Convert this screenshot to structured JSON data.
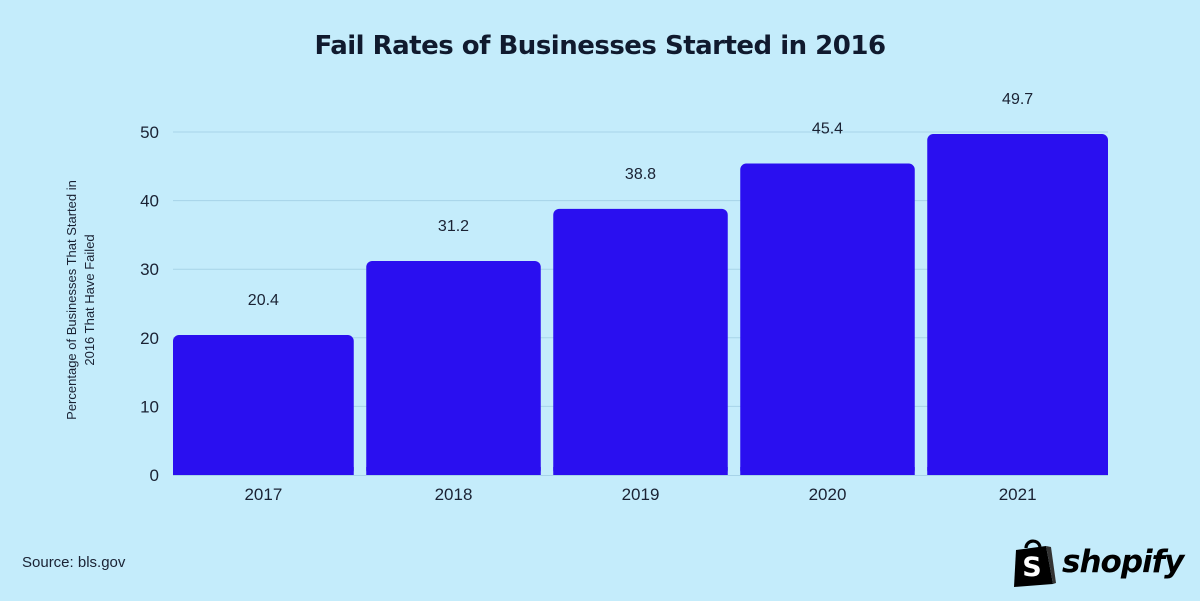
{
  "chart_data": {
    "type": "bar",
    "title": "Fail Rates of Businesses Started in 2016",
    "ylabel_lines": [
      "Percentage of Businesses That Started in",
      "2016 That Have Failed"
    ],
    "xlabel": "",
    "categories": [
      "2017",
      "2018",
      "2019",
      "2020",
      "2021"
    ],
    "values": [
      20.4,
      31.2,
      38.8,
      45.4,
      49.7
    ],
    "value_labels": [
      "20.4",
      "31.2",
      "38.8",
      "45.4",
      "49.7"
    ],
    "y_ticks": [
      0,
      10,
      20,
      30,
      40,
      50
    ],
    "ylim": [
      0,
      50
    ],
    "grid": true,
    "legend": "none",
    "colors": {
      "bar": "#2a0ff0",
      "background": "#c4ecfb",
      "gridline": "#a7d3e8",
      "text": "#1a2233"
    }
  },
  "source": "Source: bls.gov",
  "brand": {
    "name": "shopify",
    "icon": "shopify-bag-icon"
  }
}
